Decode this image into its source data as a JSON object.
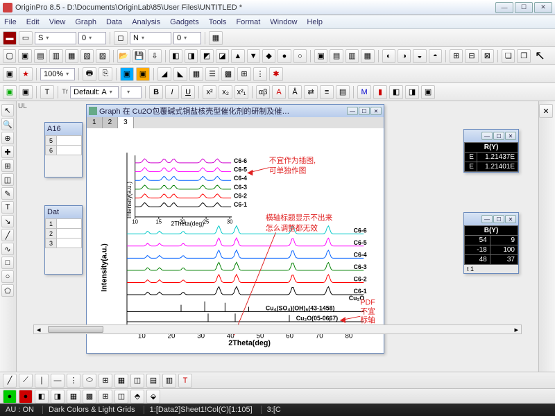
{
  "window": {
    "title": "OriginPro 8.5 - D:\\Documents\\OriginLab\\85\\User Files\\UNTITLED *",
    "minimize": "—",
    "maximize": "☐",
    "close": "✕"
  },
  "menu": {
    "items": [
      "File",
      "Edit",
      "View",
      "Graph",
      "Data",
      "Analysis",
      "Gadgets",
      "Tools",
      "Format",
      "Window",
      "Help"
    ]
  },
  "toolbar1": {
    "combo_s": "S",
    "combo_0a": "0",
    "combo_n": "N",
    "combo_0b": "0"
  },
  "toolbar3": {
    "zoom": "100%"
  },
  "toolbar4": {
    "font": "Default: A",
    "size_blank": ""
  },
  "graph_window": {
    "title": "Graph 在 Cu2O包覆碱式铜盐核壳型催化剂的研制及催…",
    "tabs": [
      "1",
      "2",
      "3"
    ],
    "active_tab": 2
  },
  "inset_chart": {
    "xlabel": "2Theta(deg)",
    "ylabel": "Intensity(a.u.)",
    "xticks": [
      10,
      15,
      20,
      25,
      30
    ],
    "series": [
      "C6-6",
      "C6-5",
      "C6-4",
      "C6-3",
      "C6-2",
      "C6-1"
    ],
    "colors": [
      "#d000d0",
      "#ff00ff",
      "#0060ff",
      "#008000",
      "#ff0000",
      "#000000"
    ]
  },
  "main_chart": {
    "xlabel": "2Theta(deg)",
    "ylabel": "Intensity(a.u.)",
    "xticks": [
      10,
      20,
      30,
      40,
      50,
      60,
      70,
      80
    ],
    "series": [
      "C6-6",
      "C6-5",
      "C6-4",
      "C6-3",
      "C6-2",
      "C6-1"
    ],
    "colors": [
      "#00c8c8",
      "#ff00ff",
      "#0060ff",
      "#008000",
      "#ff0000",
      "#000000"
    ],
    "ref_patterns": [
      "Cu₄(SO₄)(OH)₆(43-1458)",
      "Cu₂O(05-0667)"
    ],
    "cuo_label": "Cu₂O"
  },
  "annotations": {
    "a1_l1": "不宜作为插图,",
    "a1_l2": "可单独作图",
    "a2_l1": "横轴标题显示不出来",
    "a2_l2": "怎么调整都无效",
    "a3_l1": "PDF",
    "a3_l2": "不宜",
    "a3_l3": "标轴"
  },
  "wks1": {
    "title": "A16",
    "rows": [
      "5",
      "6"
    ]
  },
  "wks2": {
    "title": "Dat",
    "rows": [
      "1",
      "2",
      "3"
    ]
  },
  "data_panel1": {
    "header": "R(Y)",
    "col1_hdr": "E",
    "rows": [
      [
        "E",
        "1.21437E"
      ],
      [
        "E",
        "1.21401E"
      ]
    ]
  },
  "data_panel2": {
    "header": "B(Y)",
    "rows": [
      [
        "54",
        "9"
      ],
      [
        "-18",
        "100"
      ],
      [
        "48",
        "37"
      ]
    ],
    "footer": "t 1"
  },
  "status": {
    "au": "AU : ON",
    "theme": "Dark Colors & Light Grids",
    "sel1": "1:[Data2]Sheet1!Col(C)[1:105]",
    "sel2": "3:[C"
  },
  "ui_text": {
    "ul_label": "UL"
  },
  "colors": {
    "annotation_red": "#e02020",
    "title_gradient_from": "#d8e4f4",
    "title_gradient_to": "#b8ccec"
  }
}
